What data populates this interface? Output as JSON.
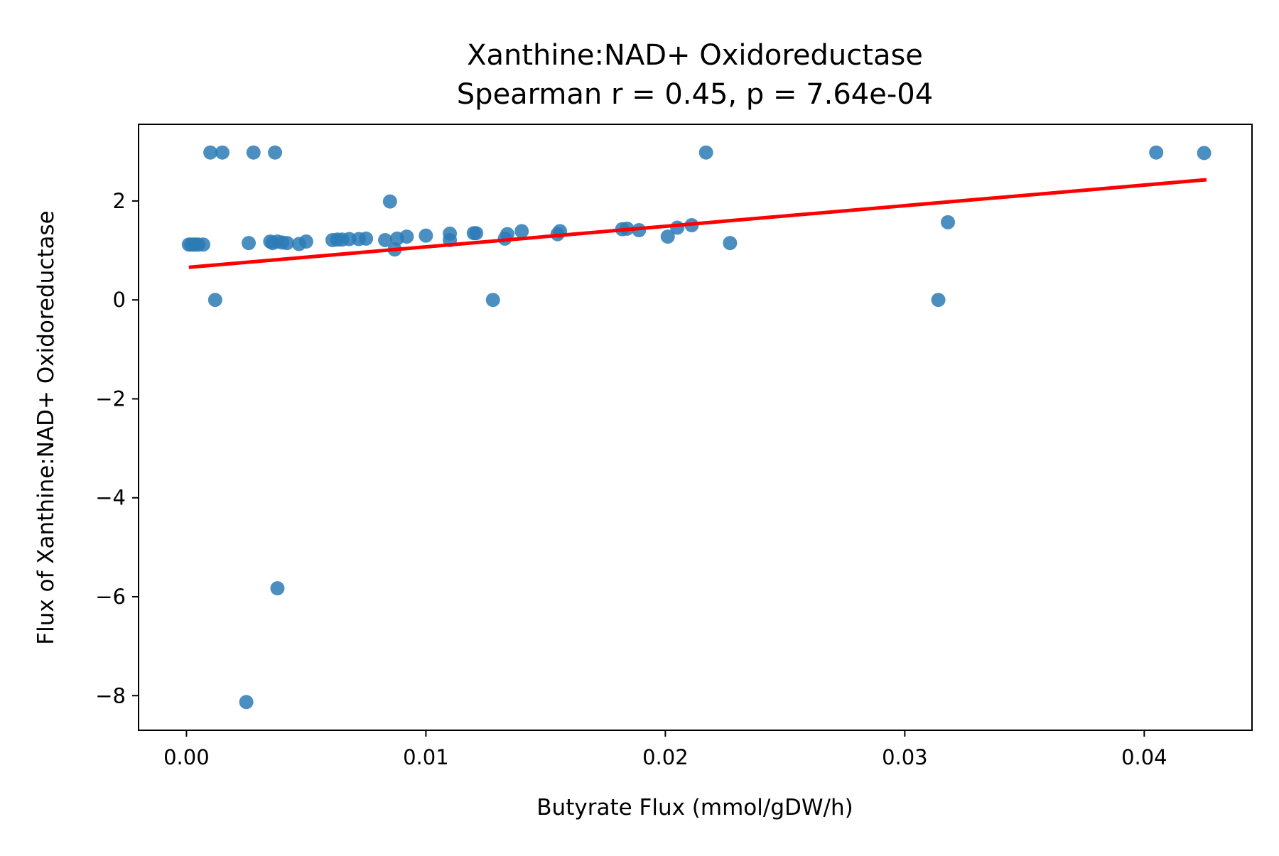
{
  "chart_data": {
    "type": "scatter",
    "title": "Xanthine:NAD+ Oxidoreductase",
    "subtitle": "Spearman r = 0.45, p = 7.64e-04",
    "xlabel": "Butyrate Flux (mmol/gDW/h)",
    "ylabel": "Flux of Xanthine:NAD+ Oxidoreductase",
    "xlim": [
      -0.002,
      0.0445
    ],
    "ylim": [
      -8.7,
      3.55
    ],
    "xticks": [
      0.0,
      0.01,
      0.02,
      0.03,
      0.04
    ],
    "xtick_labels": [
      "0.00",
      "0.01",
      "0.02",
      "0.03",
      "0.04"
    ],
    "yticks": [
      2,
      0,
      -2,
      -4,
      -6,
      -8
    ],
    "ytick_labels": [
      "2",
      "0",
      "−2",
      "−4",
      "−6",
      "−8"
    ],
    "grid": false,
    "point_color": "#2c7bb6",
    "line_color": "#ff0000",
    "points": [
      {
        "x": 0.0001,
        "y": 1.12
      },
      {
        "x": 0.0002,
        "y": 1.12
      },
      {
        "x": 0.0003,
        "y": 1.12
      },
      {
        "x": 0.0004,
        "y": 1.12
      },
      {
        "x": 0.0005,
        "y": 1.12
      },
      {
        "x": 0.0007,
        "y": 1.12
      },
      {
        "x": 0.001,
        "y": 2.98
      },
      {
        "x": 0.0015,
        "y": 2.98
      },
      {
        "x": 0.0012,
        "y": 0.0
      },
      {
        "x": 0.0025,
        "y": -8.13
      },
      {
        "x": 0.0026,
        "y": 1.15
      },
      {
        "x": 0.0028,
        "y": 2.98
      },
      {
        "x": 0.0035,
        "y": 1.18
      },
      {
        "x": 0.0036,
        "y": 1.15
      },
      {
        "x": 0.0037,
        "y": 2.98
      },
      {
        "x": 0.0038,
        "y": -5.83
      },
      {
        "x": 0.0038,
        "y": 1.18
      },
      {
        "x": 0.004,
        "y": 1.16
      },
      {
        "x": 0.0042,
        "y": 1.15
      },
      {
        "x": 0.0047,
        "y": 1.13
      },
      {
        "x": 0.005,
        "y": 1.18
      },
      {
        "x": 0.0061,
        "y": 1.21
      },
      {
        "x": 0.0063,
        "y": 1.22
      },
      {
        "x": 0.0065,
        "y": 1.22
      },
      {
        "x": 0.0068,
        "y": 1.23
      },
      {
        "x": 0.0072,
        "y": 1.23
      },
      {
        "x": 0.0075,
        "y": 1.24
      },
      {
        "x": 0.0083,
        "y": 1.21
      },
      {
        "x": 0.0085,
        "y": 1.99
      },
      {
        "x": 0.0087,
        "y": 1.02
      },
      {
        "x": 0.0088,
        "y": 1.24
      },
      {
        "x": 0.0092,
        "y": 1.28
      },
      {
        "x": 0.01,
        "y": 1.3
      },
      {
        "x": 0.011,
        "y": 1.21
      },
      {
        "x": 0.011,
        "y": 1.34
      },
      {
        "x": 0.012,
        "y": 1.35
      },
      {
        "x": 0.0121,
        "y": 1.35
      },
      {
        "x": 0.0128,
        "y": 0.0
      },
      {
        "x": 0.0133,
        "y": 1.24
      },
      {
        "x": 0.0134,
        "y": 1.33
      },
      {
        "x": 0.014,
        "y": 1.39
      },
      {
        "x": 0.0155,
        "y": 1.33
      },
      {
        "x": 0.0156,
        "y": 1.39
      },
      {
        "x": 0.0182,
        "y": 1.43
      },
      {
        "x": 0.0184,
        "y": 1.44
      },
      {
        "x": 0.0189,
        "y": 1.41
      },
      {
        "x": 0.0201,
        "y": 1.28
      },
      {
        "x": 0.0205,
        "y": 1.46
      },
      {
        "x": 0.0211,
        "y": 1.51
      },
      {
        "x": 0.0217,
        "y": 2.98
      },
      {
        "x": 0.0227,
        "y": 1.15
      },
      {
        "x": 0.0314,
        "y": 0.0
      },
      {
        "x": 0.0318,
        "y": 1.57
      },
      {
        "x": 0.0405,
        "y": 2.98
      },
      {
        "x": 0.0425,
        "y": 2.97
      }
    ],
    "fit_line": {
      "x": [
        0.0001,
        0.0426
      ],
      "y": [
        0.66,
        2.43
      ]
    }
  }
}
